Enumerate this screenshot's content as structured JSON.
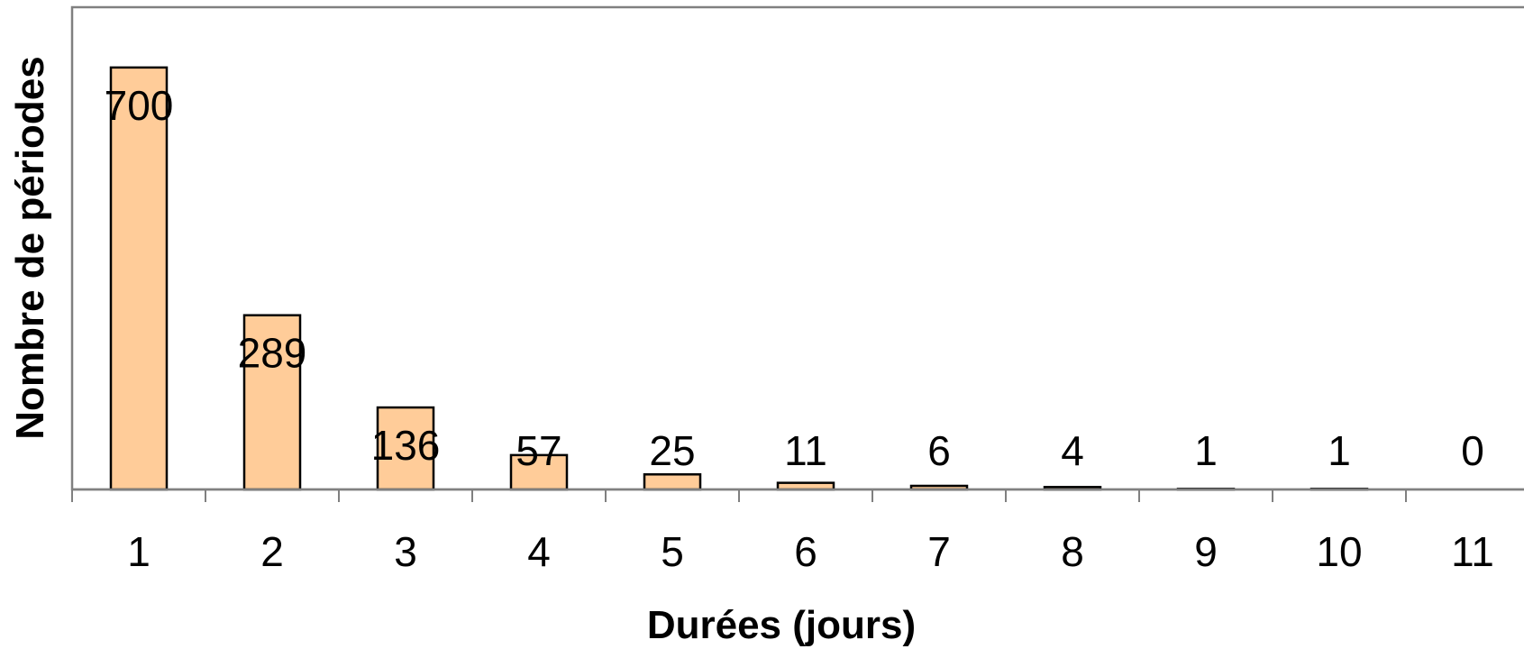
{
  "chart_data": {
    "type": "bar",
    "categories": [
      "1",
      "2",
      "3",
      "4",
      "5",
      "6",
      "7",
      "8",
      "9",
      "10",
      "11"
    ],
    "values": [
      700,
      289,
      136,
      57,
      25,
      11,
      6,
      4,
      1,
      1,
      0
    ],
    "data_labels": [
      "700",
      "289",
      "136",
      "57",
      "25",
      "11",
      "6",
      "4",
      "1",
      "1",
      "0"
    ],
    "title": "",
    "xlabel": "Durées (jours)",
    "ylabel": "Nombre de périodes",
    "ylim": [
      0,
      800
    ],
    "grid": false,
    "legend": "none",
    "colors": {
      "bar_fill": "#FFCC99",
      "bar_stroke": "#000000",
      "axis": "#808080",
      "text": "#000000"
    }
  }
}
